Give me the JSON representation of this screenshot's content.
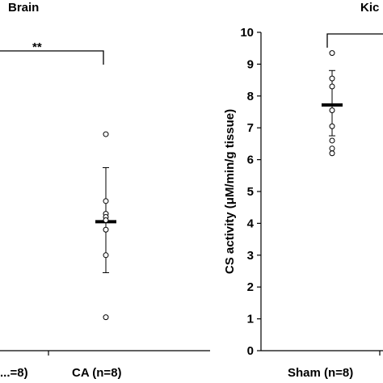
{
  "chart_data": [
    {
      "type": "scatter",
      "title": "Brain",
      "categories": [
        "...=8)",
        "CA (n=8)"
      ],
      "significance": "**",
      "series": [
        {
          "category": "CA (n=8)",
          "points": [
            6.8,
            4.7,
            4.3,
            4.2,
            4.1,
            3.8,
            3.0,
            1.05
          ],
          "mean": 4.05,
          "sd_low": 2.45,
          "sd_high": 5.75
        }
      ]
    },
    {
      "type": "scatter",
      "title": "Kic",
      "ylabel": "CS activity (μM/min/g tissue)",
      "ylim": [
        0,
        10
      ],
      "yticks": [
        "0",
        "1",
        "2",
        "3",
        "4",
        "5",
        "6",
        "7",
        "8",
        "9",
        "10"
      ],
      "categories": [
        "Sham (n=8)"
      ],
      "series": [
        {
          "category": "Sham (n=8)",
          "points": [
            9.35,
            8.55,
            8.3,
            7.55,
            7.05,
            6.6,
            6.35,
            6.2
          ],
          "mean": 7.72,
          "sd_low": 6.75,
          "sd_high": 8.8
        }
      ]
    }
  ]
}
